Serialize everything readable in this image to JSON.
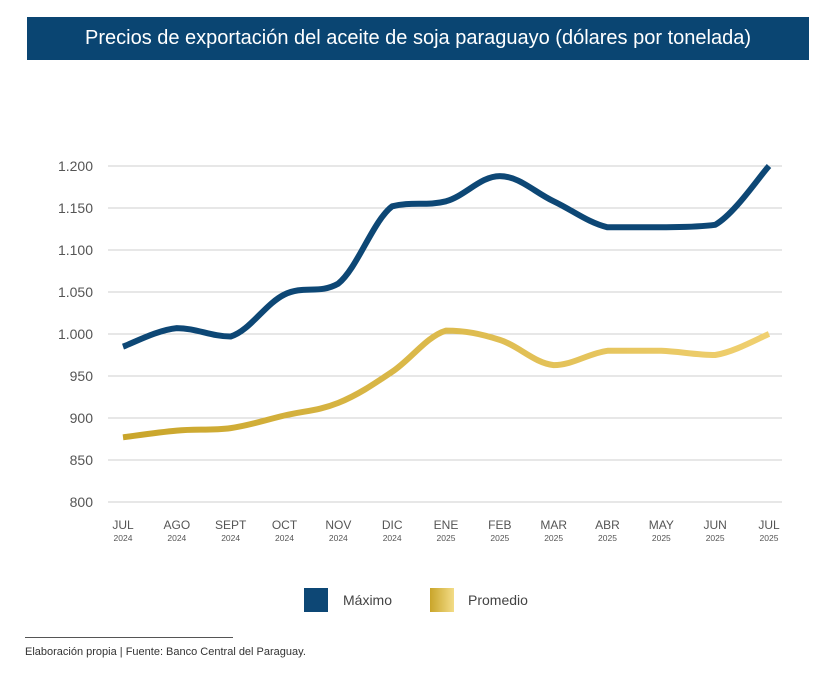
{
  "header": {
    "title": "Precios de exportación del aceite de soja paraguayo (dólares por tonelada)"
  },
  "footer": {
    "source": "Elaboración propia | Fuente: Banco Central del Paraguay."
  },
  "colors": {
    "title_background": "#0a4572",
    "maximo": "#0d4775",
    "promedio_light": "#f0d070",
    "promedio_dark": "#c9a52a",
    "grid": "#cfcfcf",
    "tick_text": "#555555"
  },
  "chart_data": {
    "type": "line",
    "title": "Precios de exportación del aceite de soja paraguayo (dólares por tonelada)",
    "categories": [
      {
        "month": "JUL",
        "year": "2024"
      },
      {
        "month": "AGO",
        "year": "2024"
      },
      {
        "month": "SEPT",
        "year": "2024"
      },
      {
        "month": "OCT",
        "year": "2024"
      },
      {
        "month": "NOV",
        "year": "2024"
      },
      {
        "month": "DIC",
        "year": "2024"
      },
      {
        "month": "ENE",
        "year": "2025"
      },
      {
        "month": "FEB",
        "year": "2025"
      },
      {
        "month": "MAR",
        "year": "2025"
      },
      {
        "month": "ABR",
        "year": "2025"
      },
      {
        "month": "MAY",
        "year": "2025"
      },
      {
        "month": "JUN",
        "year": "2025"
      },
      {
        "month": "JUL",
        "year": "2025"
      }
    ],
    "series": [
      {
        "name": "Máximo",
        "values": [
          985,
          1007,
          997,
          1047,
          1060,
          1152,
          1158,
          1188,
          1158,
          1127,
          1127,
          1130,
          1200
        ]
      },
      {
        "name": "Promedio",
        "values": [
          877,
          885,
          888,
          903,
          918,
          955,
          1004,
          993,
          963,
          980,
          980,
          975,
          1000
        ]
      }
    ],
    "ylim": [
      800,
      1200
    ],
    "yticks": [
      800,
      850,
      900,
      950,
      1000,
      1050,
      1100,
      1150,
      1200
    ],
    "ytick_labels": [
      "800",
      "850",
      "900",
      "950",
      "1.000",
      "1.050",
      "1.100",
      "1.150",
      "1.200"
    ],
    "xlabel": "",
    "ylabel": "",
    "grid": true,
    "legend_position": "bottom-center"
  }
}
